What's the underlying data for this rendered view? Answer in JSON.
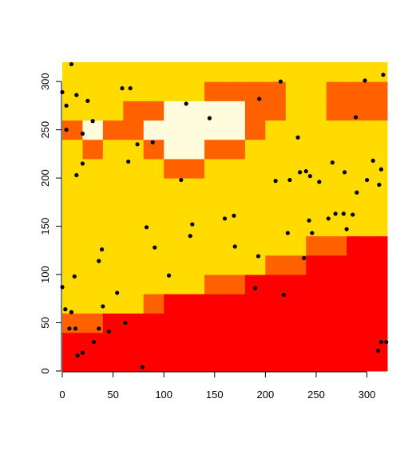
{
  "chart_data": {
    "type": "image-scatter",
    "xlim": [
      0,
      320
    ],
    "ylim": [
      0,
      320
    ],
    "xticks": [
      0,
      50,
      100,
      150,
      200,
      250,
      300
    ],
    "yticks": [
      0,
      50,
      100,
      150,
      200,
      250,
      300
    ],
    "x_breaks": [
      0,
      20,
      40,
      60,
      80,
      100,
      120,
      140,
      160,
      180,
      200,
      220,
      240,
      260,
      280,
      300,
      320
    ],
    "y_breaks": [
      0,
      20,
      40,
      60,
      80,
      100,
      120,
      140,
      160,
      180,
      200,
      220,
      240,
      260,
      280,
      300,
      320
    ],
    "levels": [
      1,
      2,
      3,
      4
    ],
    "colors": [
      "#ff0000",
      "#ff6000",
      "#ffdb00",
      "#fffbdc"
    ],
    "z": [
      [
        1,
        1,
        1,
        1,
        1,
        1,
        1,
        1,
        1,
        1,
        1,
        1,
        1,
        1,
        1,
        1
      ],
      [
        1,
        1,
        1,
        1,
        1,
        1,
        1,
        1,
        1,
        1,
        1,
        1,
        1,
        1,
        1,
        1
      ],
      [
        2,
        2,
        1,
        1,
        1,
        1,
        1,
        1,
        1,
        1,
        1,
        1,
        1,
        1,
        1,
        1
      ],
      [
        3,
        3,
        3,
        3,
        2,
        1,
        1,
        1,
        1,
        1,
        1,
        1,
        1,
        1,
        1,
        1
      ],
      [
        3,
        3,
        3,
        3,
        3,
        3,
        3,
        2,
        2,
        1,
        1,
        1,
        1,
        1,
        1,
        1
      ],
      [
        3,
        3,
        3,
        3,
        3,
        3,
        3,
        3,
        3,
        3,
        2,
        2,
        1,
        1,
        1,
        1
      ],
      [
        3,
        3,
        3,
        3,
        3,
        3,
        3,
        3,
        3,
        3,
        3,
        3,
        2,
        2,
        1,
        1
      ],
      [
        3,
        3,
        3,
        3,
        3,
        3,
        3,
        3,
        3,
        3,
        3,
        3,
        3,
        3,
        3,
        3
      ],
      [
        3,
        3,
        3,
        3,
        3,
        3,
        3,
        3,
        3,
        3,
        3,
        3,
        3,
        3,
        3,
        3
      ],
      [
        3,
        3,
        3,
        3,
        3,
        3,
        3,
        3,
        3,
        3,
        3,
        3,
        3,
        3,
        3,
        3
      ],
      [
        3,
        3,
        3,
        3,
        3,
        2,
        2,
        3,
        3,
        3,
        3,
        3,
        3,
        3,
        3,
        3
      ],
      [
        3,
        2,
        3,
        3,
        2,
        4,
        4,
        2,
        2,
        3,
        3,
        3,
        3,
        3,
        3,
        3
      ],
      [
        2,
        4,
        2,
        2,
        4,
        4,
        4,
        4,
        4,
        2,
        3,
        3,
        3,
        3,
        3,
        3
      ],
      [
        3,
        3,
        3,
        2,
        2,
        4,
        4,
        4,
        4,
        2,
        2,
        3,
        3,
        2,
        2,
        2
      ],
      [
        3,
        3,
        3,
        3,
        3,
        3,
        3,
        2,
        2,
        2,
        2,
        3,
        3,
        2,
        2,
        2
      ],
      [
        3,
        3,
        3,
        3,
        3,
        3,
        3,
        3,
        3,
        3,
        3,
        3,
        3,
        3,
        3,
        3
      ]
    ],
    "points": {
      "color": "#000000",
      "x": [
        0,
        9,
        4,
        14,
        25,
        4,
        30,
        20,
        20,
        14,
        59,
        67,
        74,
        65,
        89,
        122,
        145,
        117,
        194,
        215,
        298,
        316,
        289,
        232,
        210,
        224,
        234,
        240,
        244,
        253,
        266,
        278,
        306,
        314,
        312,
        300,
        290,
        0,
        12,
        3,
        9,
        7,
        13,
        15,
        20,
        31,
        36,
        36,
        39,
        40,
        46,
        54,
        62,
        79,
        83,
        91,
        105,
        126,
        128,
        160,
        169,
        170,
        193,
        190,
        218,
        222,
        238,
        243,
        246,
        262,
        269,
        277,
        280,
        286,
        311,
        314,
        319
      ],
      "y": [
        289,
        318,
        275,
        286,
        280,
        250,
        259,
        246,
        215,
        203,
        293,
        293,
        235,
        217,
        237,
        277,
        262,
        198,
        282,
        300,
        301,
        307,
        263,
        242,
        197,
        198,
        206,
        207,
        202,
        196,
        216,
        206,
        218,
        209,
        193,
        198,
        185,
        87,
        98,
        64,
        61,
        44,
        44,
        16,
        19,
        30,
        44,
        114,
        126,
        67,
        41,
        81,
        50,
        4,
        149,
        128,
        99,
        140,
        152,
        158,
        161,
        129,
        119,
        86,
        79,
        143,
        117,
        156,
        143,
        158,
        163,
        163,
        147,
        162,
        21,
        30,
        30
      ]
    }
  }
}
